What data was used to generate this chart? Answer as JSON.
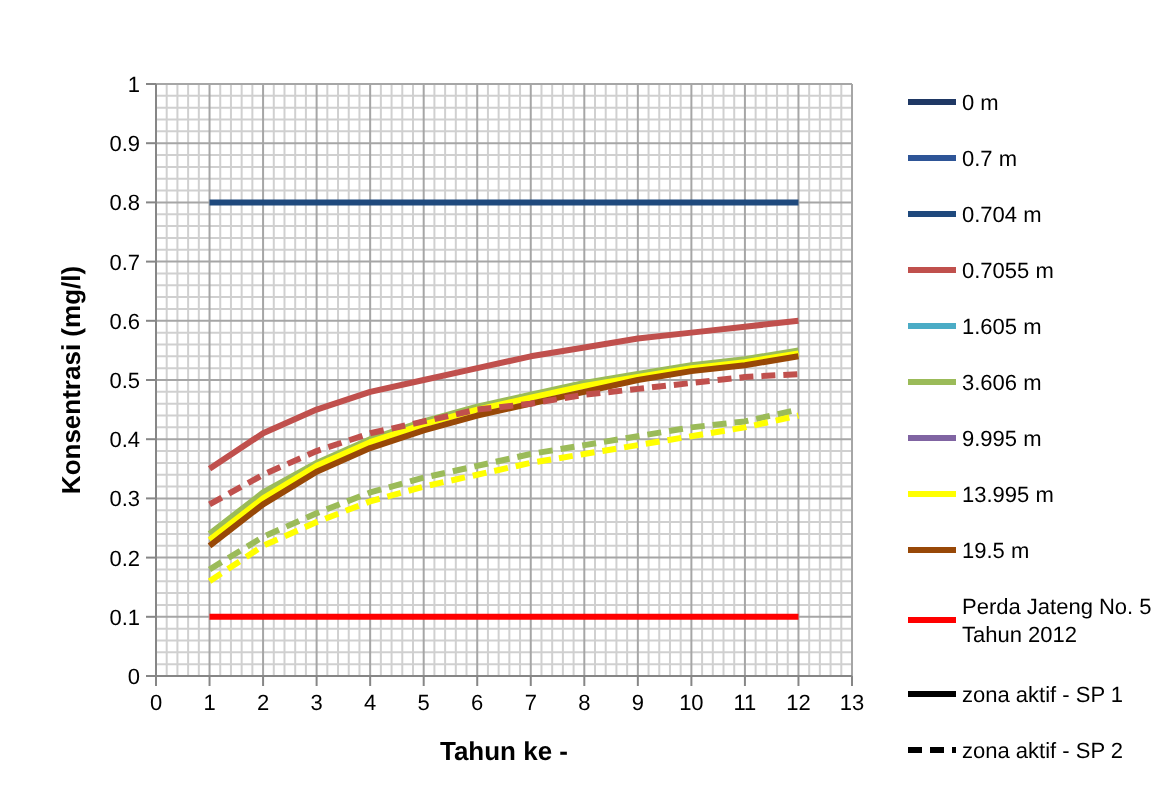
{
  "chart_data": {
    "type": "line",
    "xlabel": "Tahun ke -",
    "ylabel": "Konsentrasi (mg/l)",
    "x": [
      1,
      2,
      3,
      4,
      5,
      6,
      7,
      8,
      9,
      10,
      11,
      12
    ],
    "xlim": [
      0,
      13
    ],
    "xticks": [
      0,
      1,
      2,
      3,
      4,
      5,
      6,
      7,
      8,
      9,
      10,
      11,
      12,
      13
    ],
    "ylim": [
      0,
      1
    ],
    "yticks": [
      0,
      0.1,
      0.2,
      0.3,
      0.4,
      0.5,
      0.6,
      0.7,
      0.8,
      0.9,
      1
    ],
    "grid": true,
    "legend": "right",
    "marker": "none",
    "line_style": "solid",
    "series": [
      {
        "name": "0 m",
        "color": "#1f3864",
        "values": [
          null,
          null,
          null,
          null,
          null,
          null,
          null,
          null,
          null,
          null,
          null,
          null
        ]
      },
      {
        "name": "0.7 m",
        "color": "#2e5597",
        "values": [
          null,
          null,
          null,
          null,
          null,
          null,
          null,
          null,
          null,
          null,
          null,
          null
        ]
      },
      {
        "name": "0.704 m",
        "color": "#1f497d",
        "values": [
          0.8,
          0.8,
          0.8,
          0.8,
          0.8,
          0.8,
          0.8,
          0.8,
          0.8,
          0.8,
          0.8,
          0.8
        ]
      },
      {
        "name": "0.7055 m",
        "color": "#c0504d",
        "values": [
          0.35,
          0.41,
          0.45,
          0.48,
          0.5,
          0.52,
          0.54,
          0.555,
          0.57,
          0.58,
          0.59,
          0.6
        ]
      },
      {
        "name": "1.605 m",
        "color": "#4bacc6",
        "values": [
          null,
          null,
          null,
          null,
          null,
          null,
          null,
          null,
          null,
          null,
          null,
          null
        ]
      },
      {
        "name": "3.606 m",
        "color": "#9bbb59",
        "values": [
          0.24,
          0.31,
          0.36,
          0.4,
          0.43,
          0.455,
          0.475,
          0.495,
          0.51,
          0.525,
          0.535,
          0.55
        ]
      },
      {
        "name": "9.995 m",
        "color": "#8064a2",
        "values": [
          null,
          null,
          null,
          null,
          null,
          null,
          null,
          null,
          null,
          null,
          null,
          null
        ]
      },
      {
        "name": "13.995 m",
        "color": "#ffff00",
        "values": [
          0.23,
          0.3,
          0.355,
          0.395,
          0.425,
          0.45,
          0.47,
          0.49,
          0.505,
          0.52,
          0.53,
          0.545
        ]
      },
      {
        "name": "19.5 m",
        "color": "#984807",
        "values": [
          0.22,
          0.29,
          0.345,
          0.385,
          0.415,
          0.44,
          0.46,
          0.48,
          0.5,
          0.515,
          0.525,
          0.54
        ]
      },
      {
        "name": "Perda Jateng No. 5 Tahun 2012",
        "color": "#ff0000",
        "values": [
          0.1,
          0.1,
          0.1,
          0.1,
          0.1,
          0.1,
          0.1,
          0.1,
          0.1,
          0.1,
          0.1,
          0.1
        ]
      },
      {
        "name": "zona aktif - SP 1",
        "color": "#000000",
        "values": [
          null,
          null,
          null,
          null,
          null,
          null,
          null,
          null,
          null,
          null,
          null,
          null
        ]
      },
      {
        "name": "zona aktif - SP 2",
        "color": "#000000",
        "line_style": "dashed",
        "values": [
          null,
          null,
          null,
          null,
          null,
          null,
          null,
          null,
          null,
          null,
          null,
          null
        ]
      },
      {
        "color": "#c0504d",
        "line_style": "dashed",
        "values": [
          0.29,
          0.34,
          0.38,
          0.41,
          0.43,
          0.45,
          0.46,
          0.475,
          0.485,
          0.495,
          0.505,
          0.51
        ]
      },
      {
        "color": "#9bbb59",
        "line_style": "dashed",
        "values": [
          0.18,
          0.235,
          0.275,
          0.31,
          0.335,
          0.355,
          0.375,
          0.39,
          0.405,
          0.42,
          0.43,
          0.45
        ]
      },
      {
        "color": "#ffff00",
        "line_style": "dashed",
        "values": [
          0.16,
          0.22,
          0.26,
          0.295,
          0.32,
          0.34,
          0.36,
          0.375,
          0.39,
          0.405,
          0.42,
          0.44
        ]
      }
    ]
  }
}
